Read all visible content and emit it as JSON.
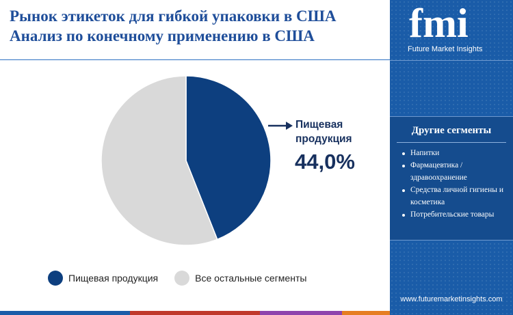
{
  "header": {
    "title_line1": "Рынок этикеток для гибкой упаковки в США",
    "title_line2": "Анализ по конечному применению в США"
  },
  "chart_data": {
    "type": "pie",
    "categories": [
      "Пищевая продукция",
      "Все остальные сегменты"
    ],
    "values": [
      44.0,
      56.0
    ],
    "colors": [
      "#0d3f7f",
      "#d9d9d9"
    ],
    "callout": {
      "label_line1": "Пищевая",
      "label_line2": "продукция",
      "value_text": "44,0%"
    },
    "legend_placement": "bottom"
  },
  "legend": {
    "items": [
      {
        "label": "Пищевая продукция",
        "color": "#0d3f7f"
      },
      {
        "label": "Все остальные сегменты",
        "color": "#d9d9d9"
      }
    ]
  },
  "sidebar": {
    "logo_text": "fmi",
    "logo_subtitle": "Future Market Insights",
    "segments_title": "Другие сегменты",
    "segments": [
      "Напитки",
      "Фармацевтика / здравоохранение",
      "Средства личной гигиены и косметика",
      "Потребительские товары"
    ],
    "website": "www.futuremarketinsights.com"
  },
  "colors": {
    "title": "#1f4e9a",
    "sidebar_bg": "#1a5ca8",
    "accent_bar": [
      "#1a5ca8",
      "#c0392b",
      "#8e44ad",
      "#e67e22"
    ]
  }
}
